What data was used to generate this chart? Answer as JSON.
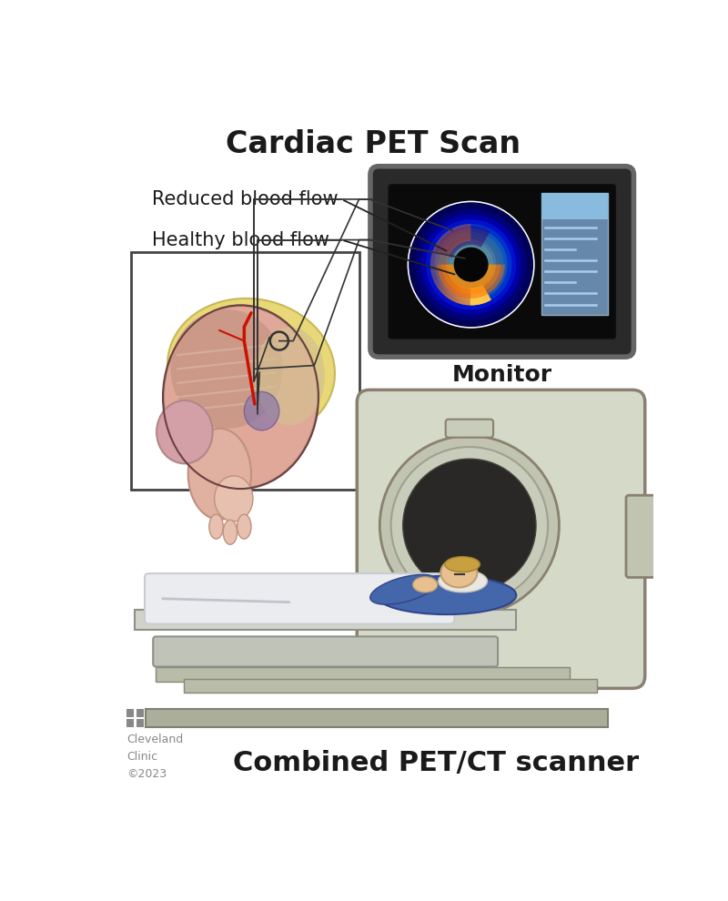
{
  "title": "Cardiac PET Scan",
  "title_fontsize": 24,
  "title_fontweight": "bold",
  "title_color": "#1a1a1a",
  "label_reduced": "Reduced blood flow",
  "label_healthy": "Healthy blood flow",
  "label_monitor": "Monitor",
  "label_scanner": "Combined PET/CT scanner",
  "label_clinic": "Cleveland\nClinic\n©2023",
  "label_fontsize": 15,
  "scanner_label_fontsize": 22,
  "background_color": "#ffffff",
  "monitor_bg": "#1a1a1a",
  "monitor_border": "#555555",
  "scanner_color": "#d4d9c8",
  "scanner_dark": "#8a8070",
  "scanner_bore_color": "#c8ccba",
  "scanner_inner": "#1a1a1a",
  "heart_pink": "#e8a898",
  "heart_pale": "#ddb0a0",
  "heart_purple": "#9988aa",
  "heart_yellow": "#e8d878",
  "heart_muscle": "#cc9988",
  "heart_red_vessel": "#cc2200",
  "heart_dark": "#554444",
  "patient_blue": "#4466aa",
  "patient_skin": "#e8c090",
  "patient_hair": "#c8a040",
  "patient_blanket": "#e8ecf0",
  "table_color": "#b8bca8",
  "table_rail": "#a8ac98"
}
